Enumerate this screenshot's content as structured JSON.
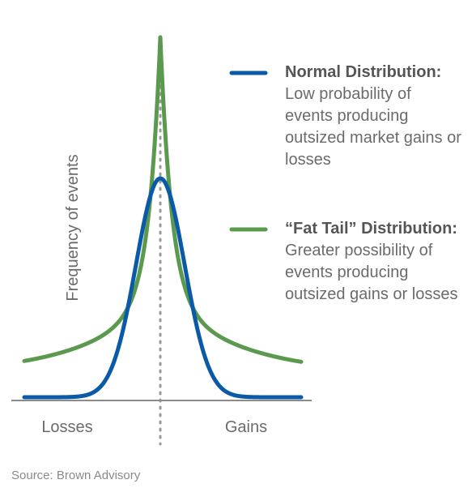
{
  "chart_data": {
    "type": "line",
    "ylabel": "Frequency of events",
    "x_category_labels": [
      "Losses",
      "Gains"
    ],
    "grid": false,
    "center_reference_line": "dotted",
    "series": [
      {
        "name": "Normal Distribution",
        "color": "#0a5aa8",
        "shape": "normal"
      },
      {
        "name": "“Fat Tail” Distribution",
        "color": "#5b9a4e",
        "shape": "fat-tailed"
      }
    ],
    "legend": [
      {
        "title": "Normal Distribution:",
        "description": "Low probability of events producing outsized market gains or losses",
        "color": "#0a5aa8"
      },
      {
        "title": "“Fat Tail” Distribution:",
        "description": "Greater possibility of events producing outsized gains or losses",
        "color": "#5b9a4e"
      }
    ],
    "legend_position": "right",
    "source": "Source: Brown Advisory"
  }
}
